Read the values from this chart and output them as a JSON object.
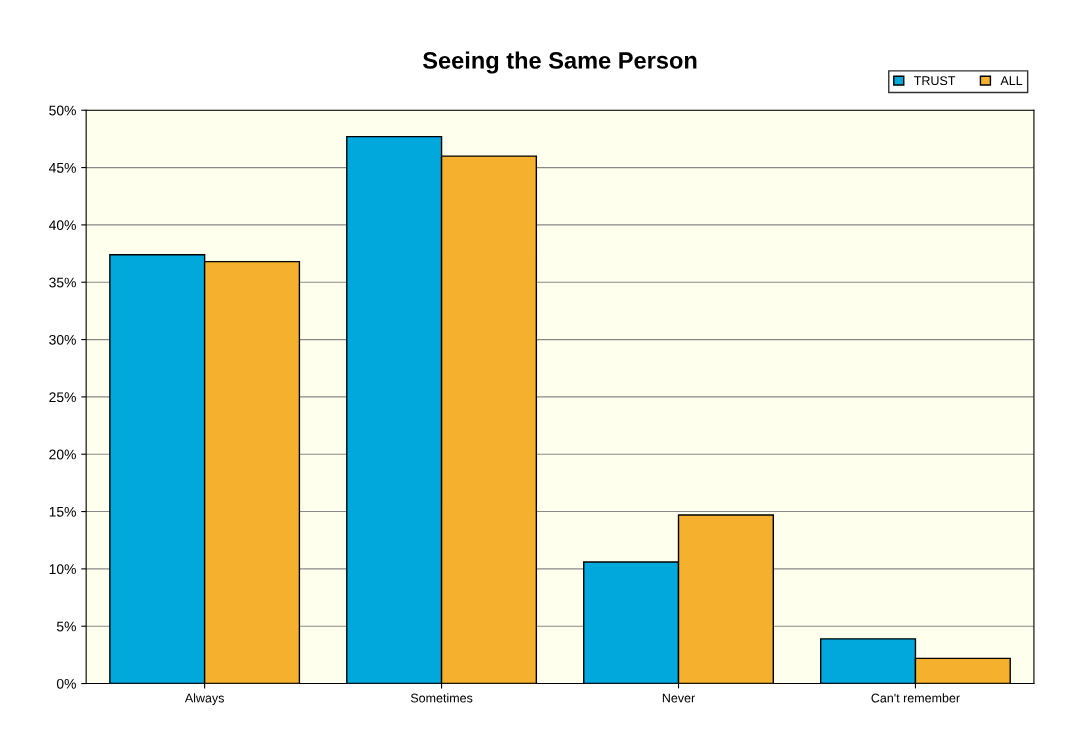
{
  "chart_data": {
    "type": "bar",
    "title": "Seeing the Same Person",
    "categories": [
      "Always",
      "Sometimes",
      "Never",
      "Can't remember"
    ],
    "series": [
      {
        "name": "TRUST",
        "color": "#00a8dc",
        "values": [
          37.4,
          47.7,
          10.6,
          3.9
        ]
      },
      {
        "name": "ALL",
        "color": "#f5b02e",
        "values": [
          36.8,
          46.0,
          14.7,
          2.2
        ]
      }
    ],
    "ylim": [
      0,
      50
    ],
    "yticks": [
      {
        "value": 0,
        "label": "0%"
      },
      {
        "value": 5,
        "label": "5%"
      },
      {
        "value": 10,
        "label": "10%"
      },
      {
        "value": 15,
        "label": "15%"
      },
      {
        "value": 20,
        "label": "20%"
      },
      {
        "value": 25,
        "label": "25%"
      },
      {
        "value": 30,
        "label": "30%"
      },
      {
        "value": 35,
        "label": "35%"
      },
      {
        "value": 40,
        "label": "40%"
      },
      {
        "value": 45,
        "label": "45%"
      },
      {
        "value": 50,
        "label": "50%"
      }
    ],
    "grid": "y",
    "legend": "top right"
  }
}
